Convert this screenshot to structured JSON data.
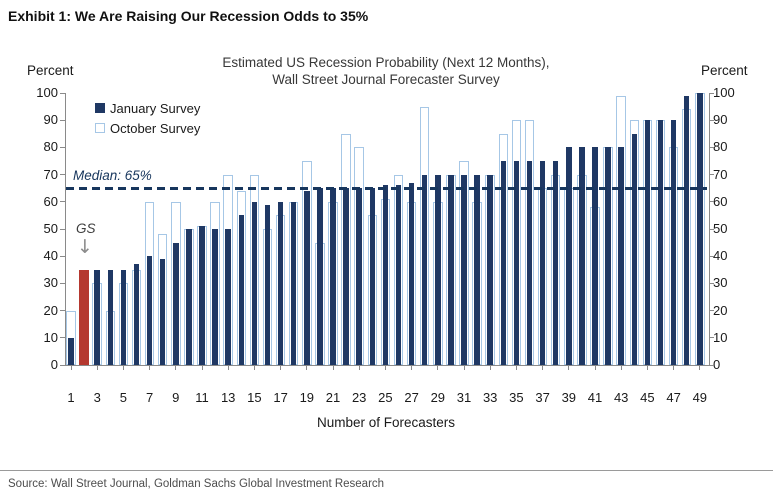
{
  "exhibit_title": "Exhibit 1: We Are Raising Our Recession Odds to 35%",
  "source": "Source: Wall Street Journal, Goldman Sachs Global Investment Research",
  "axis": {
    "percent_left": "Percent",
    "percent_right": "Percent"
  },
  "annotations": {
    "median_label": "Median: 65%",
    "gs_label": "GS",
    "gs_arrow_icon": "down-arrow"
  },
  "legend": {
    "january": "January Survey",
    "october": "October Survey"
  },
  "colors": {
    "january_navy": "#1f3864",
    "october_outline": "#a6c7e6",
    "gs_red": "#b5382f",
    "median_navy": "#17365d",
    "axis_gray": "#8a8a8a",
    "arrow_gray": "#8c8c8c"
  },
  "chart_data": {
    "type": "bar",
    "title_line1": "Estimated US Recession Probability (Next 12 Months),",
    "title_line2": "Wall Street Journal Forecaster Survey",
    "xlabel": "Number of Forecasters",
    "ylabel": "Percent",
    "ylim": [
      0,
      100
    ],
    "yticks": [
      0,
      10,
      20,
      30,
      40,
      50,
      60,
      70,
      80,
      90,
      100
    ],
    "xticks": [
      1,
      3,
      5,
      7,
      9,
      11,
      13,
      15,
      17,
      19,
      21,
      23,
      25,
      27,
      29,
      31,
      33,
      35,
      37,
      39,
      41,
      43,
      45,
      47,
      49
    ],
    "grid": false,
    "legend_position": "top-left-inside",
    "median_value": 65,
    "gs_bar_index": 2,
    "gs_bar_value": 35,
    "categories": [
      1,
      2,
      3,
      4,
      5,
      6,
      7,
      8,
      9,
      10,
      11,
      12,
      13,
      14,
      15,
      16,
      17,
      18,
      19,
      20,
      21,
      22,
      23,
      24,
      25,
      26,
      27,
      28,
      29,
      30,
      31,
      32,
      33,
      34,
      35,
      36,
      37,
      38,
      39,
      40,
      41,
      42,
      43,
      44,
      45,
      46,
      47,
      48,
      49
    ],
    "series": [
      {
        "name": "January Survey",
        "values": [
          10,
          35,
          35,
          35,
          35,
          37,
          40,
          39,
          45,
          50,
          51,
          50,
          50,
          55,
          60,
          59,
          60,
          60,
          64,
          65,
          65,
          65,
          65,
          65,
          66,
          66,
          67,
          70,
          70,
          70,
          70,
          70,
          70,
          75,
          75,
          75,
          75,
          75,
          80,
          80,
          80,
          80,
          80,
          85,
          90,
          90,
          90,
          99,
          100
        ]
      },
      {
        "name": "October Survey",
        "values": [
          20,
          null,
          30,
          20,
          30,
          35,
          60,
          48,
          60,
          50,
          51,
          60,
          70,
          64,
          70,
          50,
          55,
          60,
          75,
          45,
          60,
          85,
          80,
          55,
          61,
          70,
          60,
          95,
          60,
          70,
          75,
          60,
          70,
          85,
          90,
          90,
          65,
          70,
          65,
          70,
          58,
          80,
          99,
          90,
          90,
          90,
          80,
          94,
          100
        ]
      }
    ]
  }
}
